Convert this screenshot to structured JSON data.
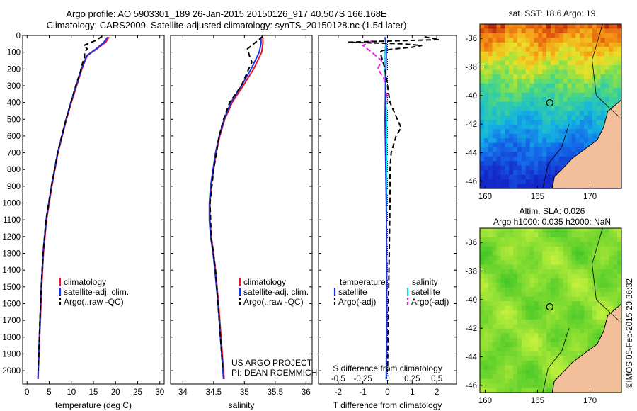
{
  "header": {
    "line1": "Argo profile: AO 5903301_189 26-Jan-2015 20150126_917 40.507S 166.168E",
    "line2": "Climatology: CARS2009. Satellite-adjusted climatology: synTS_20150128.nc (1.5d later)"
  },
  "colors": {
    "climatology": "#e8142a",
    "satellite": "#1a35e0",
    "argo": "#000000",
    "satellite_salinity": "#00e5ee",
    "argo_salinity": "#ee1ce0",
    "land": "#f2bf9a"
  },
  "chart_data": [
    {
      "id": "temperature",
      "type": "line",
      "xlabel": "temperature (deg C)",
      "ylabel": "",
      "xlim": [
        -1,
        31
      ],
      "ylim": [
        2080,
        0
      ],
      "x_ticks": [
        "0",
        "5",
        "10",
        "15",
        "20",
        "25",
        "30"
      ],
      "y_ticks": [
        "0",
        "100",
        "200",
        "300",
        "400",
        "500",
        "600",
        "700",
        "800",
        "900",
        "1000",
        "1100",
        "1200",
        "1300",
        "1400",
        "1500",
        "1600",
        "1700",
        "1800",
        "1900",
        "2000"
      ],
      "legend": [
        "climatology",
        "satellite-adj. clim.",
        "Argo(..raw -QC)"
      ],
      "series": [
        {
          "name": "climatology",
          "depth": [
            10,
            40,
            80,
            120,
            200,
            300,
            400,
            500,
            700,
            900,
            1100,
            1300,
            1500,
            1700,
            1900,
            2000,
            2050
          ],
          "values": [
            18.5,
            17.8,
            15.8,
            13.6,
            12.4,
            11.2,
            10.0,
            8.9,
            7.0,
            5.6,
            4.4,
            3.7,
            3.3,
            3.0,
            2.7,
            2.55,
            2.5
          ]
        },
        {
          "name": "satellite-adj. clim.",
          "depth": [
            10,
            40,
            80,
            120,
            200,
            300,
            400,
            500,
            700,
            900,
            1100,
            1300,
            1500,
            1700,
            1900,
            2000,
            2050
          ],
          "values": [
            18.2,
            17.4,
            15.6,
            13.5,
            12.3,
            11.1,
            9.9,
            8.8,
            6.9,
            5.5,
            4.3,
            3.6,
            3.2,
            2.9,
            2.65,
            2.5,
            2.45
          ]
        },
        {
          "name": "Argo(..raw -QC)",
          "depth": [
            5,
            30,
            60,
            80,
            100,
            130,
            160,
            220,
            300,
            400,
            500,
            700,
            900,
            1100,
            1300,
            1500,
            1700,
            1900,
            2000
          ],
          "values": [
            17.0,
            15.5,
            12.8,
            13.6,
            13.0,
            13.0,
            12.6,
            12.0,
            11.0,
            9.9,
            8.8,
            6.9,
            5.5,
            4.3,
            3.6,
            3.2,
            2.9,
            2.65,
            2.5
          ]
        }
      ]
    },
    {
      "id": "salinity",
      "type": "line",
      "xlabel": "salinity",
      "ylabel": "",
      "xlim": [
        33.8,
        36.1
      ],
      "ylim": [
        2080,
        0
      ],
      "x_ticks": [
        "34",
        "34.5",
        "35",
        "35.5",
        "36"
      ],
      "legend": [
        "climatology",
        "satellite-adj. clim.",
        "Argo(..raw -QC)"
      ],
      "annotation": [
        "US ARGO PROJECT",
        "PI: DEAN ROEMMICH"
      ],
      "series": [
        {
          "name": "climatology",
          "depth": [
            10,
            50,
            100,
            200,
            300,
            400,
            500,
            600,
            700,
            800,
            900,
            1000,
            1100,
            1200,
            1300,
            1400,
            1600,
            1800,
            2000,
            2050
          ],
          "values": [
            35.3,
            35.3,
            35.28,
            35.15,
            34.98,
            34.8,
            34.68,
            34.6,
            34.54,
            34.5,
            34.46,
            34.44,
            34.44,
            34.46,
            34.5,
            34.53,
            34.58,
            34.62,
            34.66,
            34.67
          ]
        },
        {
          "name": "satellite-adj. clim.",
          "depth": [
            10,
            50,
            100,
            200,
            300,
            400,
            500,
            600,
            700,
            800,
            900,
            1000,
            1100,
            1200,
            1300,
            1400,
            1600,
            1800,
            2000,
            2050
          ],
          "values": [
            35.27,
            35.27,
            35.24,
            35.11,
            34.95,
            34.78,
            34.67,
            34.59,
            34.53,
            34.49,
            34.45,
            34.43,
            34.43,
            34.45,
            34.49,
            34.52,
            34.57,
            34.61,
            34.65,
            34.66
          ]
        },
        {
          "name": "Argo(..raw -QC)",
          "depth": [
            5,
            50,
            80,
            120,
            160,
            200,
            300,
            400,
            500,
            600,
            800,
            1000,
            1200,
            1400,
            1600,
            1800,
            2000
          ],
          "values": [
            35.3,
            35.15,
            35.05,
            35.08,
            35.12,
            35.07,
            34.95,
            34.76,
            34.66,
            34.59,
            34.5,
            34.44,
            34.46,
            34.53,
            34.57,
            34.61,
            34.65
          ]
        }
      ]
    },
    {
      "id": "difference",
      "type": "line",
      "xlabel": "T difference from climatology",
      "xlabel_top": "S difference from climatology",
      "xlim": [
        -2.8,
        2.8
      ],
      "ylim": [
        2080,
        0
      ],
      "x_ticks": [
        "-2",
        "-1",
        "0",
        "1",
        "2"
      ],
      "x_ticks_s": [
        "-0.5",
        "-0.25",
        "0",
        "0.25",
        "0.5"
      ],
      "legend_temperature_title": "temperature",
      "legend_salinity_title": "salinity",
      "legend": [
        "satellite",
        "Argo(-adj)",
        "satellite",
        "Argo(-adj)"
      ],
      "series": [
        {
          "name": "satellite",
          "variable": "T",
          "depth": [
            10,
            60,
            120,
            300,
            500,
            1000,
            1500,
            2000,
            2050
          ],
          "values": [
            -0.1,
            -0.05,
            -0.05,
            -0.08,
            -0.1,
            -0.05,
            -0.03,
            -0.05,
            -0.05
          ]
        },
        {
          "name": "Argo(-adj)",
          "variable": "T",
          "depth": [
            8,
            25,
            40,
            50,
            60,
            70,
            80,
            90,
            100,
            150,
            200,
            300,
            400,
            450,
            500,
            550,
            600,
            700,
            800,
            1000,
            1500,
            2000
          ],
          "values": [
            1.5,
            2.1,
            -1.6,
            0.6,
            1.4,
            1.0,
            0.3,
            -0.2,
            -0.3,
            -0.2,
            -0.1,
            0.0,
            0.1,
            0.25,
            0.4,
            0.55,
            0.35,
            0.15,
            0.1,
            0.1,
            0.05,
            0.0
          ]
        },
        {
          "name": "satellite",
          "variable": "S",
          "depth": [
            10,
            60,
            120,
            200,
            300,
            500,
            1000,
            2050
          ],
          "values": [
            -0.02,
            -0.02,
            -0.03,
            -0.03,
            -0.02,
            -0.01,
            -0.01,
            -0.01
          ]
        },
        {
          "name": "Argo(-adj)",
          "variable": "S",
          "depth": [
            30,
            60,
            100,
            150,
            200,
            250,
            300,
            350,
            400
          ],
          "values": [
            -0.15,
            -0.25,
            -0.16,
            -0.06,
            -0.1,
            -0.04,
            -0.02,
            -0.01,
            0.0
          ]
        }
      ]
    },
    {
      "id": "sst_map",
      "type": "heatmap",
      "title": "sat. SST: 18.6 Argo: 19",
      "xlim": [
        159.5,
        173
      ],
      "ylim": [
        -46.5,
        -35
      ],
      "x_ticks": [
        "160",
        "165",
        "170"
      ],
      "y_ticks": [
        "-36",
        "-38",
        "-40",
        "-42",
        "-44",
        "-46"
      ],
      "marker": {
        "lon": 166.168,
        "lat": -40.507
      }
    },
    {
      "id": "sla_map",
      "type": "heatmap",
      "title": "Altim. SLA: 0.026",
      "subtitle": "Argo h1000: 0.035 h2000: NaN",
      "xlim": [
        159.5,
        173
      ],
      "ylim": [
        -46.5,
        -35
      ],
      "x_ticks": [
        "160",
        "165",
        "170"
      ],
      "y_ticks": [
        "-36",
        "-38",
        "-40",
        "-42",
        "-44",
        "-46"
      ],
      "marker": {
        "lon": 166.168,
        "lat": -40.507
      }
    }
  ],
  "credit": "©IMOS 05-Feb-2015 20:36:32"
}
